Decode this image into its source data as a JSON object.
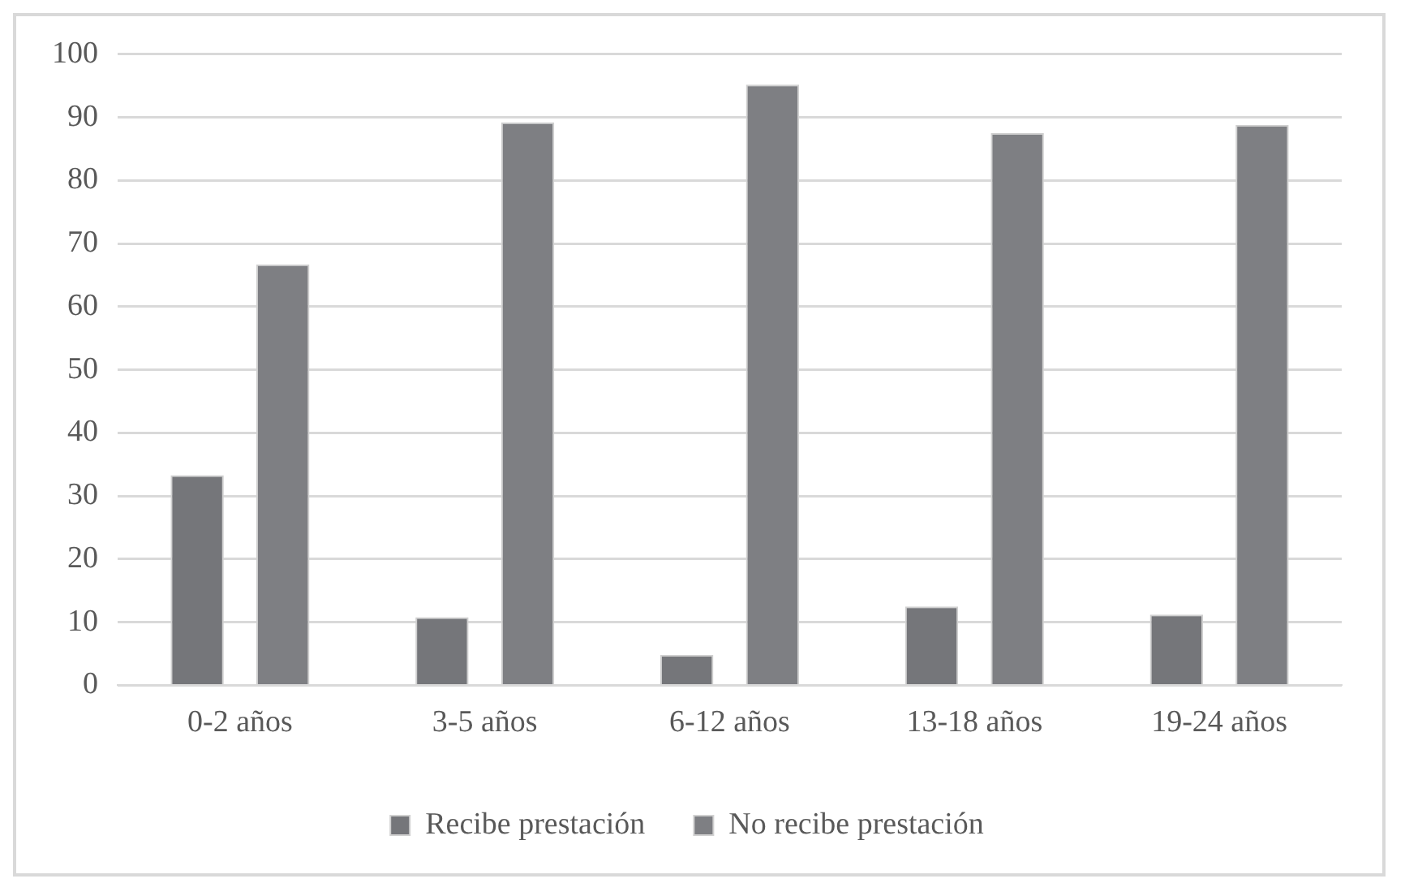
{
  "chart_data": {
    "type": "bar",
    "categories": [
      "0-2 años",
      "3-5 años",
      "6-12 años",
      "13-18 años",
      "19-24 años"
    ],
    "series": [
      {
        "name": "Recibe prestación",
        "color": "#75767a",
        "values": [
          33.3,
          10.8,
          4.8,
          12.5,
          11.2
        ]
      },
      {
        "name": "No recibe prestación",
        "color": "#7e7f83",
        "values": [
          66.7,
          89.2,
          95.2,
          87.5,
          88.8
        ]
      }
    ],
    "ylim": [
      0,
      100
    ],
    "yticks": [
      0,
      10,
      20,
      30,
      40,
      50,
      60,
      70,
      80,
      90,
      100
    ],
    "grid": "y",
    "legend": "bottom"
  }
}
